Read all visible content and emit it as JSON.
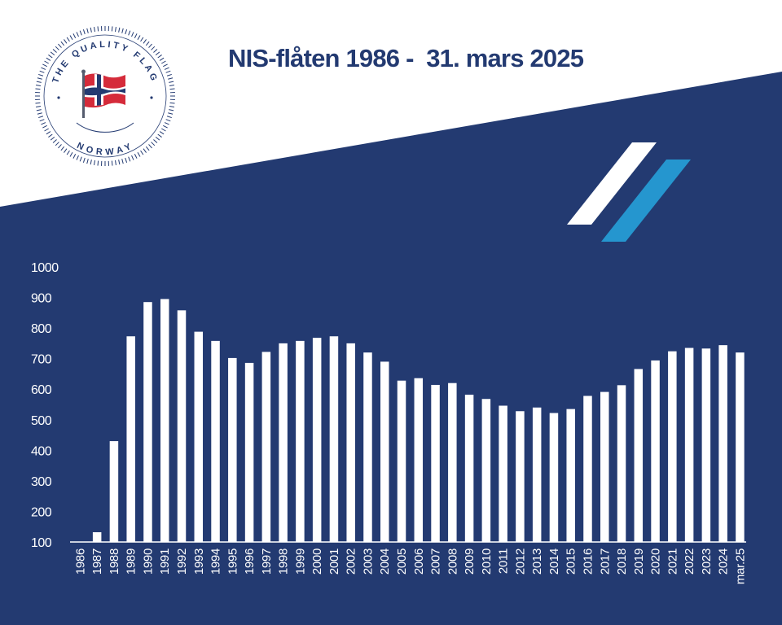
{
  "title": "NIS-flåten 1986 -  31. mars 2025",
  "logo": {
    "top_text": "THE QUALITY FLAG",
    "bottom_text": "NORWAY",
    "icon": "norwegian-flag-icon"
  },
  "colors": {
    "navy": "#233a71",
    "accent_blue": "#2596cf",
    "bar": "#ffffff",
    "flag_red": "#d52b3a"
  },
  "chart_data": {
    "type": "bar",
    "title": "NIS-flåten 1986 -  31. mars 2025",
    "xlabel": "",
    "ylabel": "",
    "categories": [
      "1986",
      "1987",
      "1988",
      "1989",
      "1990",
      "1991",
      "1992",
      "1993",
      "1994",
      "1995",
      "1996",
      "1997",
      "1998",
      "1999",
      "2000",
      "2001",
      "2002",
      "2003",
      "2004",
      "2005",
      "2006",
      "2007",
      "2008",
      "2009",
      "2010",
      "2011",
      "2012",
      "2013",
      "2014",
      "2015",
      "2016",
      "2017",
      "2018",
      "2019",
      "2020",
      "2021",
      "2022",
      "2023",
      "2024",
      "mar.25"
    ],
    "values": [
      100,
      132,
      430,
      773,
      885,
      895,
      858,
      788,
      758,
      702,
      686,
      722,
      750,
      758,
      768,
      773,
      750,
      720,
      690,
      628,
      636,
      614,
      620,
      582,
      568,
      546,
      528,
      540,
      522,
      535,
      578,
      591,
      613,
      666,
      694,
      724,
      735,
      733,
      744,
      720
    ],
    "ylim": [
      100,
      1000
    ],
    "yticks": [
      "100",
      "200",
      "300",
      "400",
      "500",
      "600",
      "700",
      "800",
      "900",
      "1000"
    ],
    "grid": false,
    "legend": "none"
  }
}
